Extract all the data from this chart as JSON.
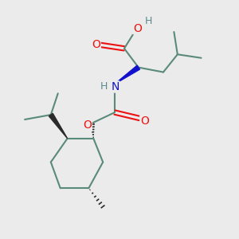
{
  "bg_color": "#ebebeb",
  "bond_color": "#5a8a7a",
  "bond_color_dark": "#2a2a2a",
  "bond_width": 1.5,
  "atom_colors": {
    "O": "#ee1111",
    "N": "#1111cc",
    "H": "#5a8a8a"
  },
  "scale": 1.0
}
